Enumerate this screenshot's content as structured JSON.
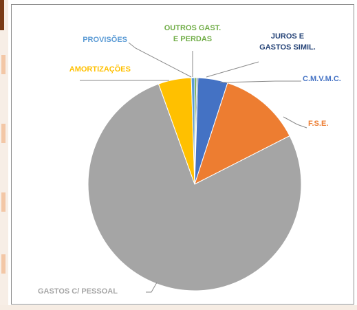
{
  "chart_data": {
    "type": "pie",
    "title": "",
    "categories": [
      "OUTROS GAST. E PERDAS",
      "JUROS E GASTOS SIMIL.",
      "C.M.V.M.C.",
      "F.S.E.",
      "GASTOS C/ PESSOAL",
      "AMORTIZAÇÕES",
      "PROVISÕES"
    ],
    "values": [
      0.3,
      0.2,
      4.5,
      12.5,
      77.0,
      5.0,
      0.5
    ],
    "colors": [
      "#70ad47",
      "#264478",
      "#4472c4",
      "#ed7d31",
      "#a5a5a5",
      "#ffc000",
      "#5b9bd5"
    ],
    "labels": [
      {
        "lines": [
          "OUTROS GAST.",
          "E PERDAS"
        ],
        "color": "#70ad47"
      },
      {
        "lines": [
          "JUROS E",
          "GASTOS SIMIL."
        ],
        "color": "#264478"
      },
      {
        "lines": [
          "C.M.V.M.C."
        ],
        "color": "#4472c4"
      },
      {
        "lines": [
          "F.S.E."
        ],
        "color": "#ed7d31"
      },
      {
        "lines": [
          "GASTOS C/ PESSOAL"
        ],
        "color": "#a5a5a5"
      },
      {
        "lines": [
          "AMORTIZAÇÕES"
        ],
        "color": "#ffc000"
      },
      {
        "lines": [
          "PROVISÕES"
        ],
        "color": "#5b9bd5"
      }
    ],
    "legend": "none",
    "start_angle_deg": 0,
    "direction": "clockwise"
  }
}
